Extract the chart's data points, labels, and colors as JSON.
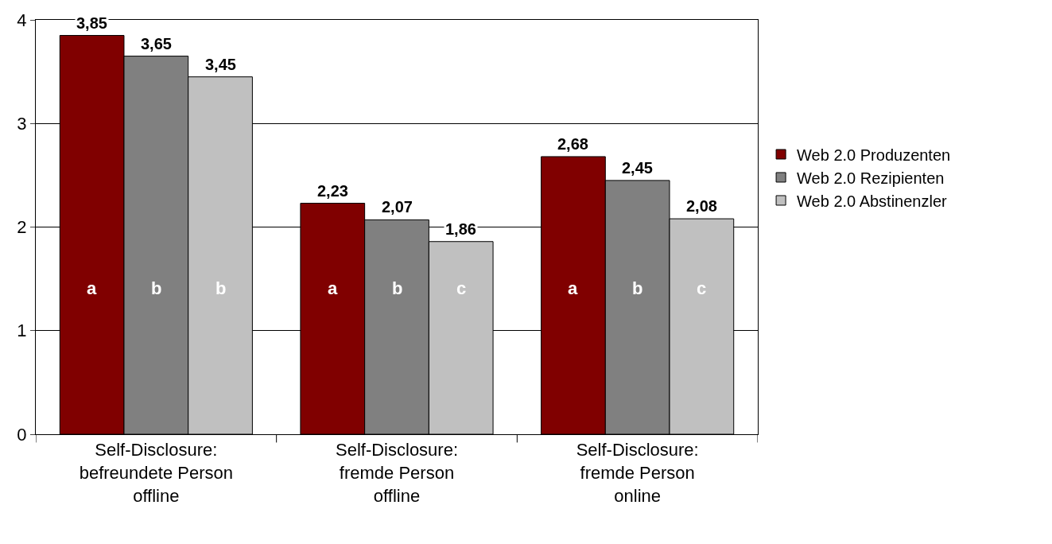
{
  "chart_data": {
    "type": "bar",
    "categories": [
      "Self-Disclosure:\nbefreundete Person\noffline",
      "Self-Disclosure:\nfremde Person\noffline",
      "Self-Disclosure:\nfremde Person\nonline"
    ],
    "series": [
      {
        "name": "Web 2.0 Produzenten",
        "color": "#800000",
        "values": [
          3.85,
          2.23,
          2.68
        ],
        "value_labels": [
          "3,85",
          "2,23",
          "2,68"
        ]
      },
      {
        "name": "Web 2.0 Rezipienten",
        "color": "#808080",
        "values": [
          3.65,
          2.07,
          2.45
        ],
        "value_labels": [
          "3,65",
          "2,07",
          "2,45"
        ]
      },
      {
        "name": "Web 2.0 Abstinenzler",
        "color": "#c0c0c0",
        "values": [
          3.45,
          1.86,
          2.08
        ],
        "value_labels": [
          "3,45",
          "1,86",
          "2,08"
        ]
      }
    ],
    "annotations": [
      "a",
      "b",
      "b",
      "a",
      "b",
      "c",
      "a",
      "b",
      "c"
    ],
    "ylim": [
      0,
      4
    ],
    "yticks": [
      0,
      1,
      2,
      3,
      4
    ],
    "grid": "y",
    "legend": "right"
  }
}
